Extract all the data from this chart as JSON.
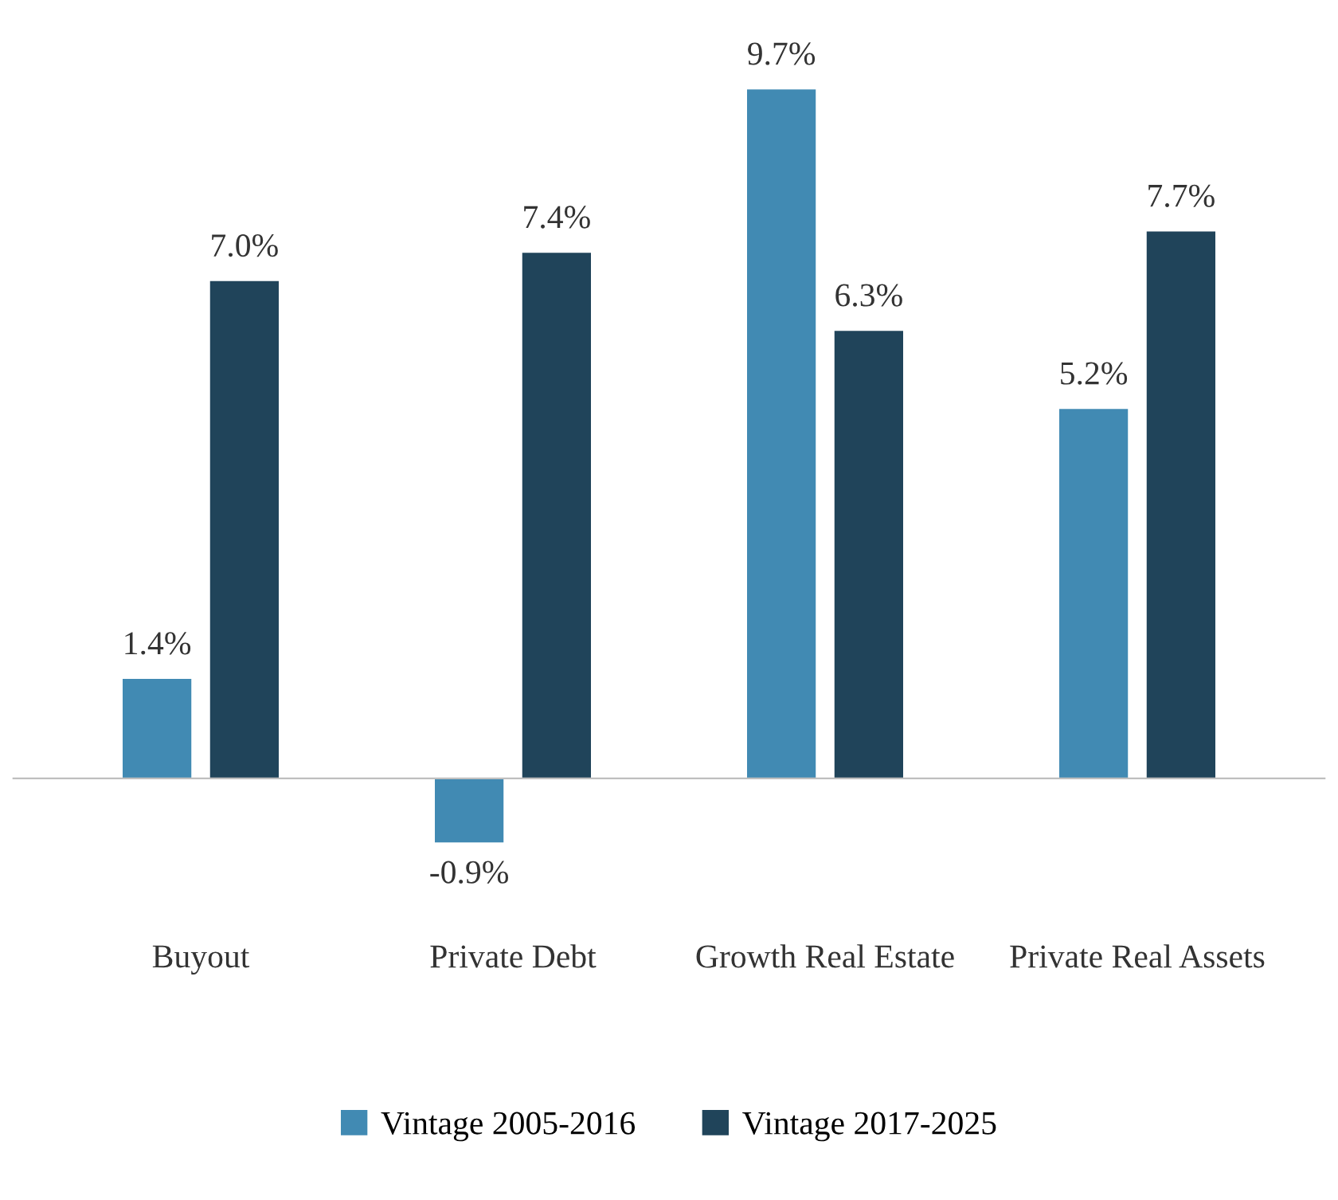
{
  "chart_data": {
    "type": "bar",
    "categories": [
      "Buyout",
      "Private Debt",
      "Growth Real Estate",
      "Private Real Assets"
    ],
    "series": [
      {
        "name": "Vintage 2005-2016",
        "color": "#418ab3",
        "values": [
          1.4,
          -0.9,
          9.7,
          5.2
        ],
        "value_labels": [
          "1.4%",
          "-0.9%",
          "9.7%",
          "5.2%"
        ]
      },
      {
        "name": "Vintage 2017-2025",
        "color": "#20445a",
        "values": [
          7.0,
          7.4,
          6.3,
          7.7
        ],
        "value_labels": [
          "7.0%",
          "7.4%",
          "6.3%",
          "7.7%"
        ]
      }
    ],
    "grid": false,
    "legend": "bottom"
  }
}
